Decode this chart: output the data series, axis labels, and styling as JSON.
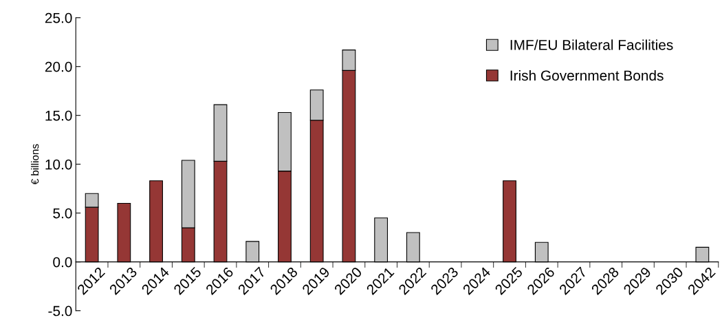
{
  "chart_data": {
    "type": "bar",
    "stacked": true,
    "ylabel": "€ billions",
    "categories": [
      "2012",
      "2013",
      "2014",
      "2015",
      "2016",
      "2017",
      "2018",
      "2019",
      "2020",
      "2021",
      "2022",
      "2023",
      "2024",
      "2025",
      "2026",
      "2027",
      "2028",
      "2029",
      "2030",
      "2042"
    ],
    "series": [
      {
        "name": "Irish Government Bonds",
        "color": "#953735",
        "values": [
          5.6,
          6.0,
          8.3,
          3.5,
          10.3,
          0,
          9.3,
          14.5,
          19.6,
          0,
          0,
          0,
          0,
          8.3,
          0,
          0,
          0,
          0,
          0,
          0
        ]
      },
      {
        "name": "IMF/EU Bilateral Facilities",
        "color": "#c0c0c0",
        "values": [
          1.4,
          0,
          0,
          6.9,
          5.8,
          2.1,
          6.0,
          3.1,
          2.1,
          4.5,
          3.0,
          0,
          0,
          0,
          2.0,
          0,
          0,
          0,
          0,
          1.5
        ]
      }
    ],
    "ylim": [
      -5,
      25
    ],
    "yticks": [
      {
        "value": -5,
        "label": "-5.0"
      },
      {
        "value": 0,
        "label": "0.0"
      },
      {
        "value": 5,
        "label": "5.0"
      },
      {
        "value": 10,
        "label": "10.0"
      },
      {
        "value": 15,
        "label": "15.0"
      },
      {
        "value": 20,
        "label": "20.0"
      },
      {
        "value": 25,
        "label": "25.0"
      }
    ],
    "legend": "top right",
    "grid": false
  }
}
